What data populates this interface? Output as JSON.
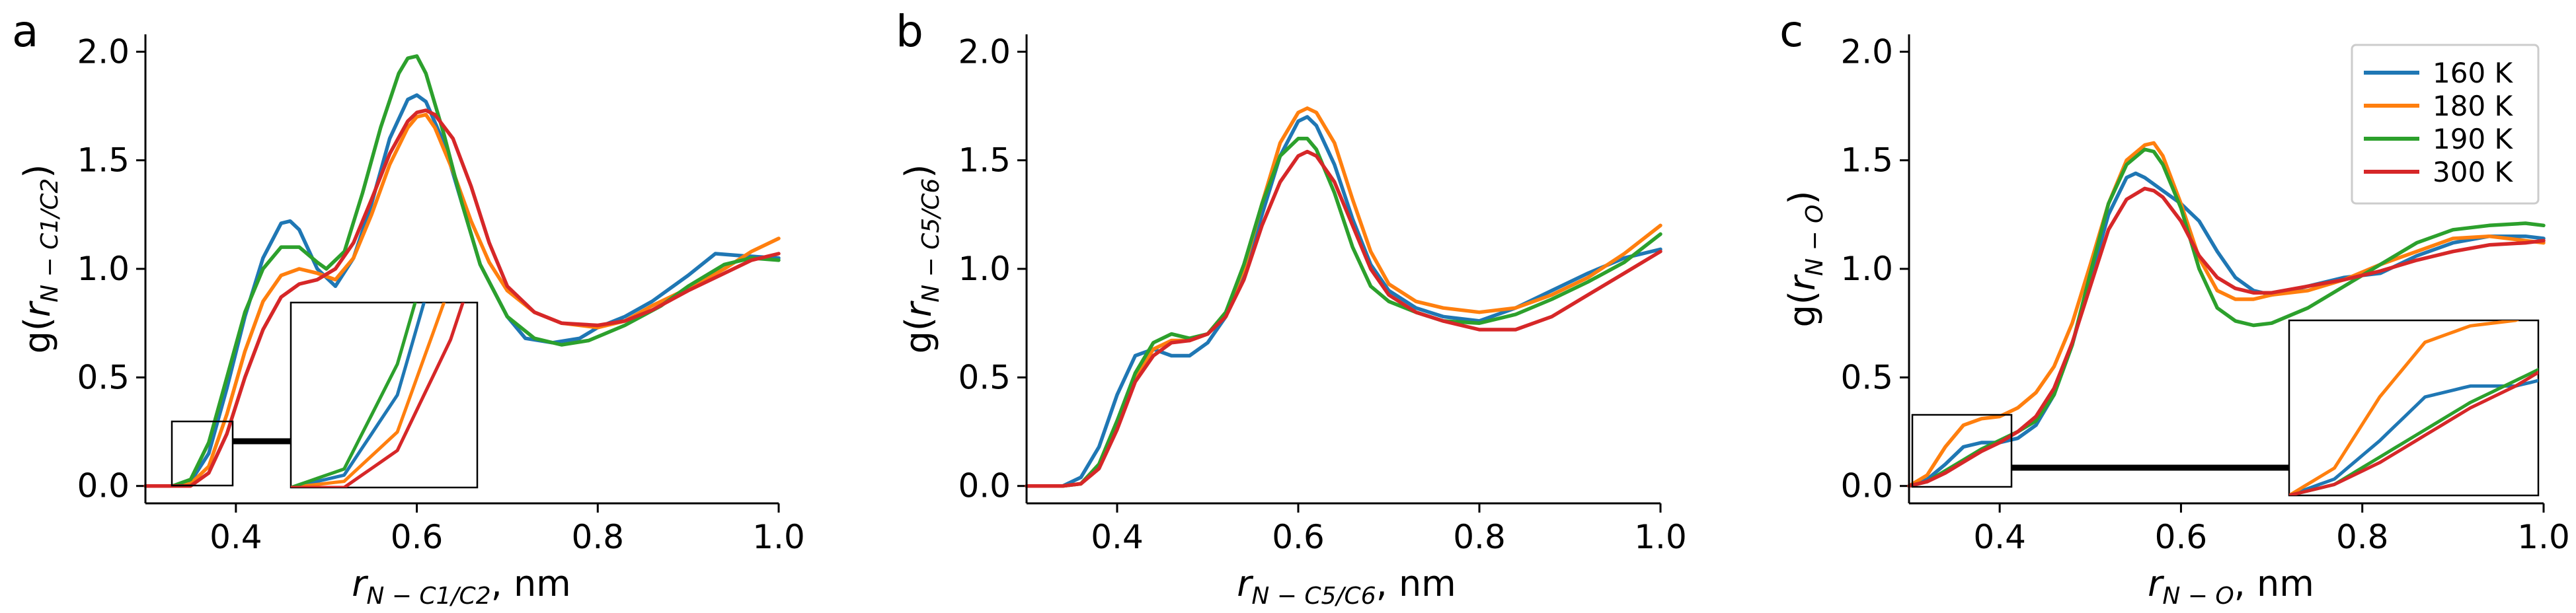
{
  "figure": {
    "description_free": true
  },
  "legend": {
    "entries": [
      {
        "name": "160 K",
        "color": "#1f77b4"
      },
      {
        "name": "180 K",
        "color": "#ff7f0e"
      },
      {
        "name": "190 K",
        "color": "#2ca02c"
      },
      {
        "name": "300 K",
        "color": "#d62728"
      }
    ]
  },
  "panels": [
    {
      "letter": "a",
      "ylabel_pre": "g(",
      "ylabel_var": "r",
      "ylabel_sub": "N − C1/C2",
      "ylabel_post": ")",
      "xlabel_var": "r",
      "xlabel_sub": "N − C1/C2",
      "xlabel_post": ", nm"
    },
    {
      "letter": "b",
      "ylabel_pre": "g(",
      "ylabel_var": "r",
      "ylabel_sub": "N − C5/C6",
      "ylabel_post": ")",
      "xlabel_var": "r",
      "xlabel_sub": "N − C5/C6",
      "xlabel_post": ", nm"
    },
    {
      "letter": "c",
      "ylabel_pre": "g(",
      "ylabel_var": "r",
      "ylabel_sub": "N − O",
      "ylabel_post": ")",
      "xlabel_var": "r",
      "xlabel_sub": "N − O",
      "xlabel_post": ", nm"
    }
  ],
  "chart_data": [
    {
      "type": "line",
      "panel": "a",
      "xlim": [
        0.3,
        1.0
      ],
      "ylim": [
        -0.08,
        2.08
      ],
      "xticks": [
        0.4,
        0.6,
        0.8,
        1.0
      ],
      "xtick_labels": [
        "0.4",
        "0.6",
        "0.8",
        "1.0"
      ],
      "yticks": [
        0.0,
        0.5,
        1.0,
        1.5,
        2.0
      ],
      "ytick_labels": [
        "0.0",
        "0.5",
        "1.0",
        "1.5",
        "2.0"
      ],
      "inset": {
        "xrange": [
          0.33,
          0.4
        ],
        "yrange": [
          0.0,
          0.3
        ]
      },
      "series": [
        {
          "name": "160 K",
          "x": [
            0.3,
            0.33,
            0.35,
            0.37,
            0.39,
            0.41,
            0.43,
            0.45,
            0.46,
            0.47,
            0.49,
            0.51,
            0.53,
            0.55,
            0.57,
            0.59,
            0.6,
            0.61,
            0.63,
            0.65,
            0.67,
            0.7,
            0.72,
            0.75,
            0.78,
            0.8,
            0.83,
            0.86,
            0.9,
            0.93,
            0.96,
            1.0
          ],
          "y": [
            0,
            0,
            0.02,
            0.15,
            0.45,
            0.78,
            1.05,
            1.21,
            1.22,
            1.18,
            1.0,
            0.92,
            1.05,
            1.3,
            1.6,
            1.78,
            1.8,
            1.77,
            1.58,
            1.3,
            1.02,
            0.78,
            0.68,
            0.66,
            0.68,
            0.73,
            0.78,
            0.85,
            0.97,
            1.07,
            1.06,
            1.05
          ]
        },
        {
          "name": "180 K",
          "x": [
            0.3,
            0.33,
            0.35,
            0.37,
            0.39,
            0.41,
            0.43,
            0.45,
            0.47,
            0.49,
            0.51,
            0.53,
            0.55,
            0.57,
            0.59,
            0.6,
            0.61,
            0.62,
            0.64,
            0.66,
            0.68,
            0.7,
            0.73,
            0.76,
            0.8,
            0.83,
            0.86,
            0.9,
            0.94,
            0.97,
            1.0
          ],
          "y": [
            0,
            0,
            0.01,
            0.09,
            0.33,
            0.62,
            0.85,
            0.97,
            1.0,
            0.98,
            0.95,
            1.05,
            1.25,
            1.48,
            1.65,
            1.7,
            1.71,
            1.65,
            1.45,
            1.22,
            1.03,
            0.9,
            0.8,
            0.75,
            0.73,
            0.76,
            0.83,
            0.91,
            1.0,
            1.08,
            1.14
          ]
        },
        {
          "name": "190 K",
          "x": [
            0.3,
            0.33,
            0.35,
            0.37,
            0.39,
            0.41,
            0.43,
            0.45,
            0.47,
            0.49,
            0.5,
            0.52,
            0.54,
            0.56,
            0.58,
            0.59,
            0.6,
            0.61,
            0.63,
            0.65,
            0.67,
            0.7,
            0.73,
            0.76,
            0.79,
            0.83,
            0.87,
            0.9,
            0.94,
            0.97,
            1.0
          ],
          "y": [
            0,
            0,
            0.03,
            0.2,
            0.5,
            0.8,
            1.0,
            1.1,
            1.1,
            1.03,
            1.0,
            1.08,
            1.35,
            1.65,
            1.9,
            1.97,
            1.98,
            1.9,
            1.62,
            1.3,
            1.02,
            0.78,
            0.68,
            0.65,
            0.67,
            0.74,
            0.83,
            0.92,
            1.02,
            1.05,
            1.04
          ]
        },
        {
          "name": "300 K",
          "x": [
            0.3,
            0.33,
            0.35,
            0.37,
            0.39,
            0.41,
            0.43,
            0.45,
            0.47,
            0.49,
            0.51,
            0.53,
            0.55,
            0.57,
            0.59,
            0.6,
            0.61,
            0.62,
            0.64,
            0.66,
            0.68,
            0.7,
            0.73,
            0.76,
            0.8,
            0.83,
            0.86,
            0.9,
            0.94,
            0.97,
            1.0
          ],
          "y": [
            0,
            0,
            0.0,
            0.06,
            0.24,
            0.5,
            0.72,
            0.87,
            0.93,
            0.95,
            1.0,
            1.12,
            1.32,
            1.53,
            1.68,
            1.72,
            1.73,
            1.71,
            1.6,
            1.38,
            1.12,
            0.92,
            0.8,
            0.75,
            0.74,
            0.76,
            0.81,
            0.9,
            0.98,
            1.04,
            1.07
          ]
        }
      ]
    },
    {
      "type": "line",
      "panel": "b",
      "xlim": [
        0.3,
        1.0
      ],
      "ylim": [
        -0.08,
        2.08
      ],
      "xticks": [
        0.4,
        0.6,
        0.8,
        1.0
      ],
      "xtick_labels": [
        "0.4",
        "0.6",
        "0.8",
        "1.0"
      ],
      "yticks": [
        0.0,
        0.5,
        1.0,
        1.5,
        2.0
      ],
      "ytick_labels": [
        "0.0",
        "0.5",
        "1.0",
        "1.5",
        "2.0"
      ],
      "series": [
        {
          "name": "160 K",
          "x": [
            0.3,
            0.34,
            0.36,
            0.38,
            0.4,
            0.42,
            0.44,
            0.46,
            0.48,
            0.5,
            0.52,
            0.54,
            0.56,
            0.58,
            0.6,
            0.61,
            0.62,
            0.64,
            0.66,
            0.68,
            0.7,
            0.73,
            0.76,
            0.8,
            0.84,
            0.88,
            0.92,
            0.96,
            1.0
          ],
          "y": [
            0,
            0,
            0.04,
            0.18,
            0.42,
            0.6,
            0.63,
            0.6,
            0.6,
            0.66,
            0.78,
            0.98,
            1.25,
            1.52,
            1.68,
            1.7,
            1.66,
            1.48,
            1.23,
            1.02,
            0.9,
            0.82,
            0.78,
            0.76,
            0.82,
            0.9,
            0.98,
            1.05,
            1.09
          ]
        },
        {
          "name": "180 K",
          "x": [
            0.3,
            0.34,
            0.36,
            0.38,
            0.4,
            0.42,
            0.44,
            0.46,
            0.48,
            0.5,
            0.52,
            0.54,
            0.56,
            0.58,
            0.6,
            0.61,
            0.62,
            0.64,
            0.66,
            0.68,
            0.7,
            0.73,
            0.76,
            0.8,
            0.84,
            0.88,
            0.92,
            0.96,
            1.0
          ],
          "y": [
            0,
            0,
            0.01,
            0.1,
            0.3,
            0.5,
            0.63,
            0.67,
            0.67,
            0.7,
            0.8,
            1.0,
            1.3,
            1.58,
            1.72,
            1.74,
            1.72,
            1.58,
            1.32,
            1.08,
            0.93,
            0.85,
            0.82,
            0.8,
            0.82,
            0.88,
            0.96,
            1.07,
            1.2
          ]
        },
        {
          "name": "190 K",
          "x": [
            0.3,
            0.34,
            0.36,
            0.38,
            0.4,
            0.42,
            0.44,
            0.46,
            0.48,
            0.5,
            0.52,
            0.54,
            0.56,
            0.58,
            0.6,
            0.61,
            0.62,
            0.64,
            0.66,
            0.68,
            0.7,
            0.73,
            0.76,
            0.8,
            0.84,
            0.88,
            0.92,
            0.96,
            1.0
          ],
          "y": [
            0,
            0,
            0.01,
            0.1,
            0.3,
            0.52,
            0.66,
            0.7,
            0.68,
            0.7,
            0.8,
            1.02,
            1.3,
            1.52,
            1.6,
            1.6,
            1.55,
            1.35,
            1.1,
            0.92,
            0.85,
            0.8,
            0.76,
            0.75,
            0.79,
            0.86,
            0.94,
            1.03,
            1.16
          ]
        },
        {
          "name": "300 K",
          "x": [
            0.3,
            0.34,
            0.36,
            0.38,
            0.4,
            0.42,
            0.44,
            0.46,
            0.48,
            0.5,
            0.52,
            0.54,
            0.56,
            0.58,
            0.6,
            0.61,
            0.62,
            0.64,
            0.66,
            0.68,
            0.7,
            0.73,
            0.76,
            0.8,
            0.84,
            0.88,
            0.92,
            0.96,
            1.0
          ],
          "y": [
            0,
            0,
            0.01,
            0.08,
            0.26,
            0.48,
            0.6,
            0.66,
            0.67,
            0.7,
            0.78,
            0.95,
            1.2,
            1.4,
            1.52,
            1.54,
            1.52,
            1.4,
            1.2,
            1.0,
            0.88,
            0.8,
            0.76,
            0.72,
            0.72,
            0.78,
            0.88,
            0.98,
            1.08
          ]
        }
      ]
    },
    {
      "type": "line",
      "panel": "c",
      "xlim": [
        0.3,
        1.0
      ],
      "ylim": [
        -0.08,
        2.08
      ],
      "xticks": [
        0.4,
        0.6,
        0.8,
        1.0
      ],
      "xtick_labels": [
        "0.4",
        "0.6",
        "0.8",
        "1.0"
      ],
      "yticks": [
        0.0,
        0.5,
        1.0,
        1.5,
        2.0
      ],
      "ytick_labels": [
        "0.0",
        "0.5",
        "1.0",
        "1.5",
        "2.0"
      ],
      "legend_position": "top-right",
      "inset": {
        "xrange": [
          0.3,
          0.41
        ],
        "yrange": [
          0.0,
          0.32
        ]
      },
      "series": [
        {
          "name": "160 K",
          "x": [
            0.3,
            0.32,
            0.34,
            0.36,
            0.38,
            0.4,
            0.42,
            0.44,
            0.46,
            0.48,
            0.5,
            0.52,
            0.54,
            0.55,
            0.56,
            0.58,
            0.6,
            0.62,
            0.64,
            0.66,
            0.68,
            0.7,
            0.74,
            0.78,
            0.82,
            0.86,
            0.9,
            0.94,
            0.98,
            1.0
          ],
          "y": [
            0.0,
            0.03,
            0.1,
            0.18,
            0.2,
            0.2,
            0.22,
            0.28,
            0.42,
            0.65,
            0.95,
            1.25,
            1.42,
            1.44,
            1.42,
            1.36,
            1.3,
            1.22,
            1.08,
            0.96,
            0.9,
            0.88,
            0.92,
            0.96,
            0.98,
            1.06,
            1.12,
            1.15,
            1.15,
            1.14
          ]
        },
        {
          "name": "180 K",
          "x": [
            0.3,
            0.32,
            0.34,
            0.36,
            0.38,
            0.4,
            0.42,
            0.44,
            0.46,
            0.48,
            0.5,
            0.52,
            0.54,
            0.56,
            0.57,
            0.58,
            0.6,
            0.62,
            0.64,
            0.66,
            0.68,
            0.7,
            0.74,
            0.78,
            0.82,
            0.86,
            0.9,
            0.94,
            0.98,
            1.0
          ],
          "y": [
            0.0,
            0.05,
            0.18,
            0.28,
            0.31,
            0.32,
            0.36,
            0.43,
            0.55,
            0.75,
            1.02,
            1.3,
            1.5,
            1.57,
            1.58,
            1.52,
            1.3,
            1.05,
            0.9,
            0.86,
            0.86,
            0.88,
            0.9,
            0.95,
            1.02,
            1.08,
            1.14,
            1.15,
            1.13,
            1.12
          ]
        },
        {
          "name": "190 K",
          "x": [
            0.3,
            0.32,
            0.34,
            0.36,
            0.38,
            0.4,
            0.42,
            0.44,
            0.46,
            0.48,
            0.5,
            0.52,
            0.54,
            0.56,
            0.57,
            0.58,
            0.6,
            0.62,
            0.64,
            0.66,
            0.68,
            0.7,
            0.74,
            0.78,
            0.82,
            0.86,
            0.9,
            0.94,
            0.98,
            1.0
          ],
          "y": [
            0.0,
            0.02,
            0.07,
            0.12,
            0.17,
            0.21,
            0.25,
            0.3,
            0.42,
            0.65,
            0.98,
            1.3,
            1.48,
            1.55,
            1.54,
            1.48,
            1.28,
            1.0,
            0.82,
            0.76,
            0.74,
            0.75,
            0.82,
            0.92,
            1.02,
            1.12,
            1.18,
            1.2,
            1.21,
            1.2
          ]
        },
        {
          "name": "300 K",
          "x": [
            0.3,
            0.32,
            0.34,
            0.36,
            0.38,
            0.4,
            0.42,
            0.44,
            0.46,
            0.48,
            0.5,
            0.52,
            0.54,
            0.56,
            0.57,
            0.58,
            0.6,
            0.62,
            0.64,
            0.66,
            0.68,
            0.7,
            0.74,
            0.78,
            0.82,
            0.86,
            0.9,
            0.94,
            0.98,
            1.0
          ],
          "y": [
            0.0,
            0.02,
            0.06,
            0.11,
            0.16,
            0.2,
            0.25,
            0.32,
            0.45,
            0.66,
            0.92,
            1.18,
            1.32,
            1.37,
            1.36,
            1.33,
            1.22,
            1.06,
            0.96,
            0.91,
            0.89,
            0.89,
            0.92,
            0.95,
            0.99,
            1.04,
            1.08,
            1.11,
            1.12,
            1.13
          ]
        }
      ]
    }
  ]
}
